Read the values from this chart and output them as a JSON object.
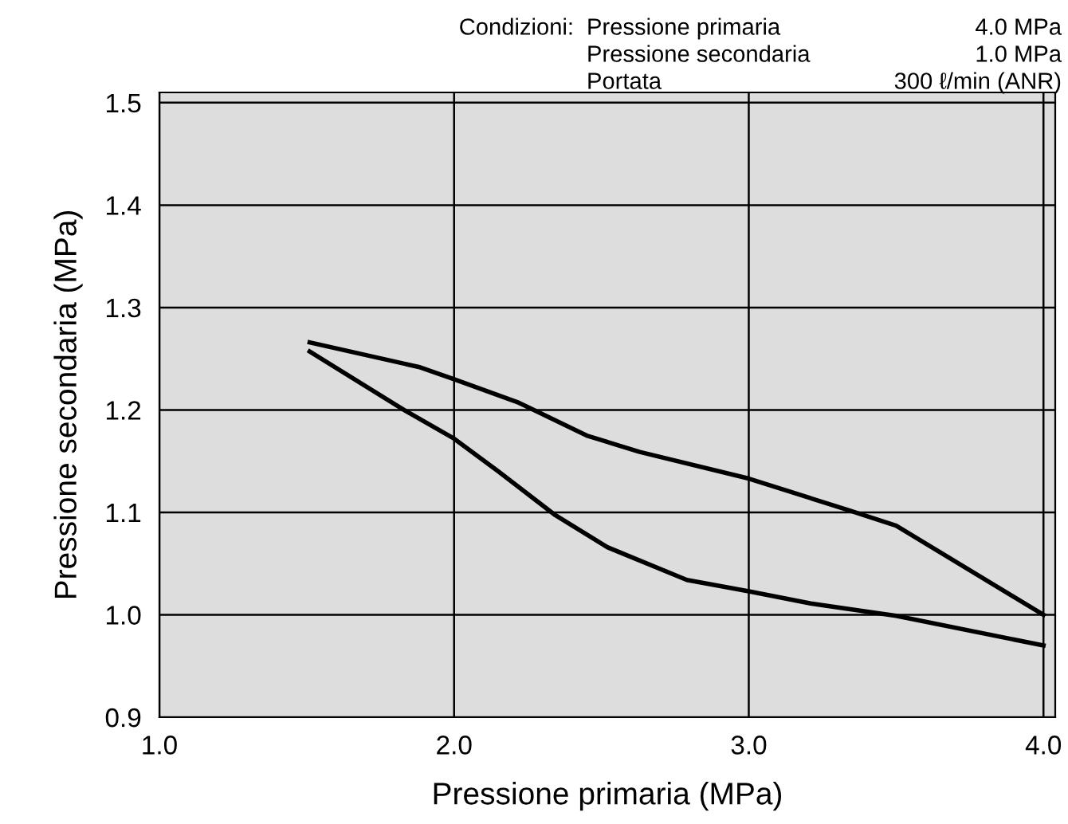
{
  "chart_data": {
    "type": "line",
    "xlabel": "Pressione primaria (MPa)",
    "ylabel": "Pressione secondaria (MPa)",
    "annotations": [
      "Condizioni:",
      "Pressione primaria",
      "4.0 MPa",
      "Pressione secondaria",
      "1.0 MPa",
      "Portata",
      "300 ℓ/min (ANR)"
    ],
    "series": [
      {
        "color": "#000000",
        "x": [
          1.51,
          1.88,
          2.0,
          2.22,
          2.45,
          2.63,
          3.0,
          3.34,
          3.5,
          4.0
        ],
        "values": [
          1.266,
          1.242,
          1.23,
          1.207,
          1.175,
          1.159,
          1.133,
          1.102,
          1.087,
          1.0
        ]
      },
      {
        "color": "#000000",
        "x": [
          1.51,
          1.83,
          2.0,
          2.15,
          2.34,
          2.52,
          2.79,
          3.0,
          3.21,
          3.5,
          4.0
        ],
        "values": [
          1.257,
          1.2,
          1.172,
          1.14,
          1.098,
          1.066,
          1.034,
          1.023,
          1.011,
          0.999,
          0.97
        ]
      }
    ],
    "xlim": [
      1.0,
      4.04
    ],
    "ylim": [
      0.9,
      1.51
    ],
    "xticks": [
      {
        "value": 1.0,
        "label": "1.0"
      },
      {
        "value": 2.0,
        "label": "2.0"
      },
      {
        "value": 3.0,
        "label": "3.0"
      },
      {
        "value": 4.0,
        "label": "4.0"
      }
    ],
    "yticks": [
      {
        "value": 0.9,
        "label": "0.9"
      },
      {
        "value": 1.0,
        "label": "1.0"
      },
      {
        "value": 1.1,
        "label": "1.1"
      },
      {
        "value": 1.2,
        "label": "1.2"
      },
      {
        "value": 1.3,
        "label": "1.3"
      },
      {
        "value": 1.4,
        "label": "1.4"
      },
      {
        "value": 1.5,
        "label": "1.5"
      }
    ],
    "grid": true,
    "marker": "none",
    "line_style": "solid"
  }
}
